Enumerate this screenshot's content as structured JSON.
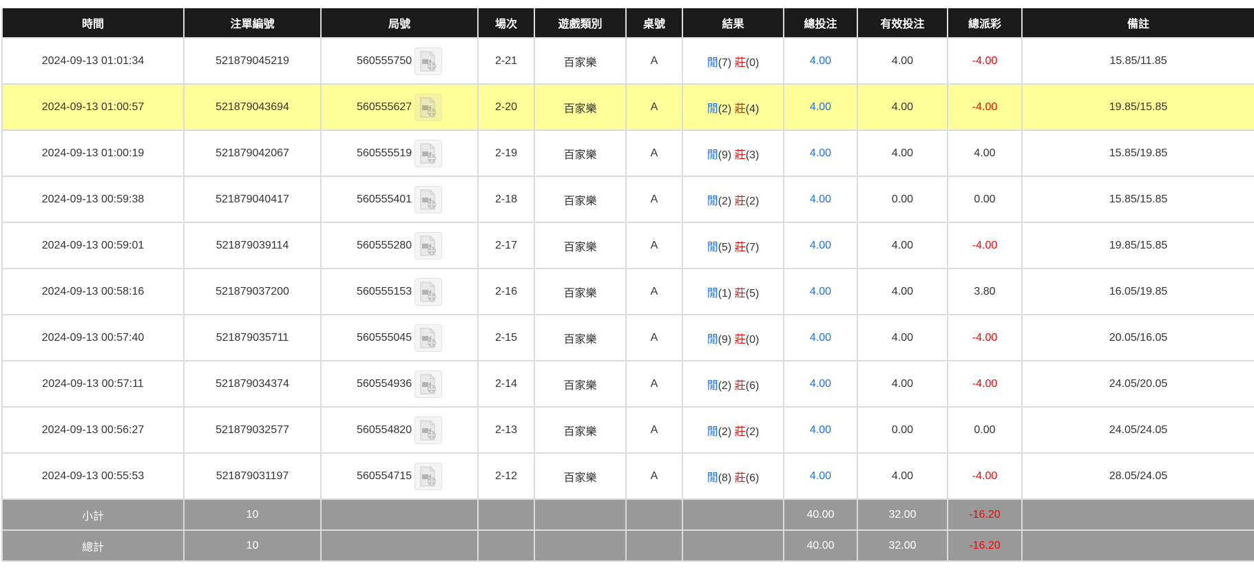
{
  "columns": [
    "時間",
    "注單編號",
    "局號",
    "場次",
    "遊戲類別",
    "桌號",
    "結果",
    "總投注",
    "有效投注",
    "總派彩",
    "備註"
  ],
  "result_labels": {
    "player": "閒",
    "banker": "莊"
  },
  "colors": {
    "header_bg": "#1b1b1b",
    "highlight_row": "#ffff99",
    "footer_bg": "#999999",
    "blue": "#1a6ff0",
    "red": "#ff0000"
  },
  "rows": [
    {
      "time": "2024-09-13 01:01:34",
      "bet_id": "521879045219",
      "round_id": "560555750",
      "shoe": "2-21",
      "game": "百家樂",
      "table": "A",
      "player": "(7)",
      "banker": "(0)",
      "total_bet": "4.00",
      "valid_bet": "4.00",
      "payout": "-4.00",
      "payout_negative": true,
      "note": "15.85/11.85",
      "highlighted": false
    },
    {
      "time": "2024-09-13 01:00:57",
      "bet_id": "521879043694",
      "round_id": "560555627",
      "shoe": "2-20",
      "game": "百家樂",
      "table": "A",
      "player": "(2)",
      "banker": "(4)",
      "total_bet": "4.00",
      "valid_bet": "4.00",
      "payout": "-4.00",
      "payout_negative": true,
      "note": "19.85/15.85",
      "highlighted": true
    },
    {
      "time": "2024-09-13 01:00:19",
      "bet_id": "521879042067",
      "round_id": "560555519",
      "shoe": "2-19",
      "game": "百家樂",
      "table": "A",
      "player": "(9)",
      "banker": "(3)",
      "total_bet": "4.00",
      "valid_bet": "4.00",
      "payout": "4.00",
      "payout_negative": false,
      "note": "15.85/19.85",
      "highlighted": false
    },
    {
      "time": "2024-09-13 00:59:38",
      "bet_id": "521879040417",
      "round_id": "560555401",
      "shoe": "2-18",
      "game": "百家樂",
      "table": "A",
      "player": "(2)",
      "banker": "(2)",
      "total_bet": "4.00",
      "valid_bet": "0.00",
      "payout": "0.00",
      "payout_negative": false,
      "note": "15.85/15.85",
      "highlighted": false
    },
    {
      "time": "2024-09-13 00:59:01",
      "bet_id": "521879039114",
      "round_id": "560555280",
      "shoe": "2-17",
      "game": "百家樂",
      "table": "A",
      "player": "(5)",
      "banker": "(7)",
      "total_bet": "4.00",
      "valid_bet": "4.00",
      "payout": "-4.00",
      "payout_negative": true,
      "note": "19.85/15.85",
      "highlighted": false
    },
    {
      "time": "2024-09-13 00:58:16",
      "bet_id": "521879037200",
      "round_id": "560555153",
      "shoe": "2-16",
      "game": "百家樂",
      "table": "A",
      "player": "(1)",
      "banker": "(5)",
      "total_bet": "4.00",
      "valid_bet": "4.00",
      "payout": "3.80",
      "payout_negative": false,
      "note": "16.05/19.85",
      "highlighted": false
    },
    {
      "time": "2024-09-13 00:57:40",
      "bet_id": "521879035711",
      "round_id": "560555045",
      "shoe": "2-15",
      "game": "百家樂",
      "table": "A",
      "player": "(9)",
      "banker": "(0)",
      "total_bet": "4.00",
      "valid_bet": "4.00",
      "payout": "-4.00",
      "payout_negative": true,
      "note": "20.05/16.05",
      "highlighted": false
    },
    {
      "time": "2024-09-13 00:57:11",
      "bet_id": "521879034374",
      "round_id": "560554936",
      "shoe": "2-14",
      "game": "百家樂",
      "table": "A",
      "player": "(2)",
      "banker": "(6)",
      "total_bet": "4.00",
      "valid_bet": "4.00",
      "payout": "-4.00",
      "payout_negative": true,
      "note": "24.05/20.05",
      "highlighted": false
    },
    {
      "time": "2024-09-13 00:56:27",
      "bet_id": "521879032577",
      "round_id": "560554820",
      "shoe": "2-13",
      "game": "百家樂",
      "table": "A",
      "player": "(2)",
      "banker": "(2)",
      "total_bet": "4.00",
      "valid_bet": "0.00",
      "payout": "0.00",
      "payout_negative": false,
      "note": "24.05/24.05",
      "highlighted": false
    },
    {
      "time": "2024-09-13 00:55:53",
      "bet_id": "521879031197",
      "round_id": "560554715",
      "shoe": "2-12",
      "game": "百家樂",
      "table": "A",
      "player": "(8)",
      "banker": "(6)",
      "total_bet": "4.00",
      "valid_bet": "4.00",
      "payout": "-4.00",
      "payout_negative": true,
      "note": "28.05/24.05",
      "highlighted": false
    }
  ],
  "footer": [
    {
      "label": "小計",
      "count": "10",
      "total_bet": "40.00",
      "valid_bet": "32.00",
      "payout": "-16.20"
    },
    {
      "label": "總計",
      "count": "10",
      "total_bet": "40.00",
      "valid_bet": "32.00",
      "payout": "-16.20"
    }
  ]
}
